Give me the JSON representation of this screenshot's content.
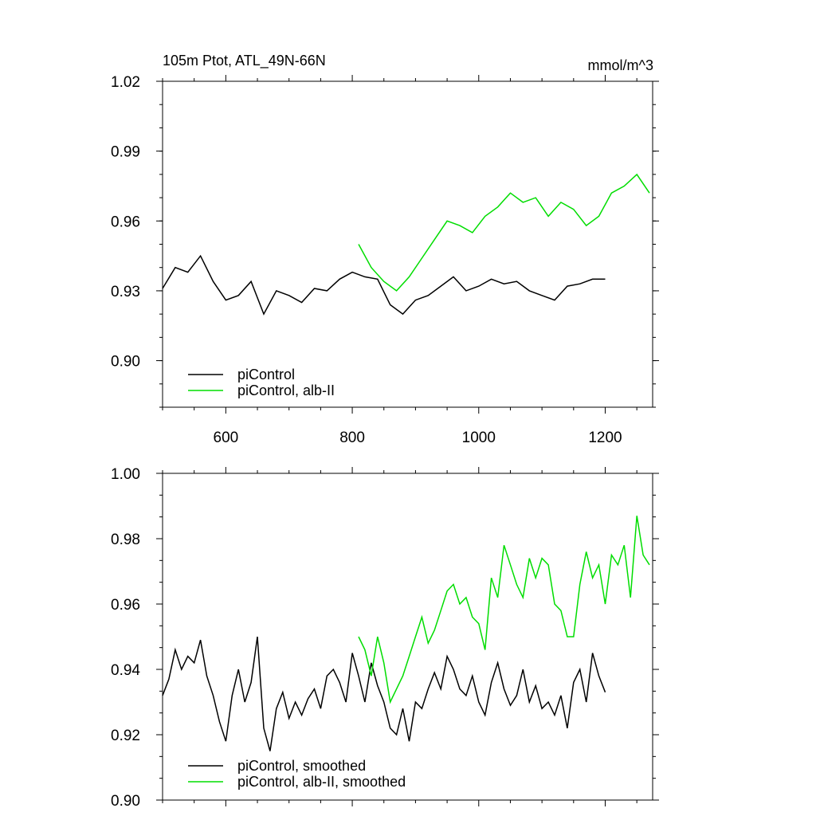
{
  "chart_data": [
    {
      "type": "line",
      "title": "105m Ptot, ATL_49N-66N",
      "units": "mmol/m^3",
      "xlim": [
        500,
        1275
      ],
      "ylim": [
        0.88,
        1.02
      ],
      "x_ticks": [
        600,
        800,
        1000,
        1200
      ],
      "x_tick_labels": [
        "600",
        "800",
        "1000",
        "1200"
      ],
      "y_ticks": [
        0.9,
        0.93,
        0.96,
        0.99,
        1.02
      ],
      "y_tick_labels": [
        "0.90",
        "0.93",
        "0.96",
        "0.99",
        "1.02"
      ],
      "legend_position": "bottom-left",
      "grid": false,
      "series": [
        {
          "name": "piControl",
          "color": "#000000",
          "x": [
            500,
            520,
            540,
            560,
            580,
            600,
            620,
            640,
            660,
            680,
            700,
            720,
            740,
            760,
            780,
            800,
            820,
            840,
            860,
            880,
            900,
            920,
            940,
            960,
            980,
            1000,
            1020,
            1040,
            1060,
            1080,
            1100,
            1120,
            1140,
            1160,
            1180,
            1200
          ],
          "values": [
            0.931,
            0.94,
            0.938,
            0.945,
            0.934,
            0.926,
            0.928,
            0.934,
            0.92,
            0.93,
            0.928,
            0.925,
            0.931,
            0.93,
            0.935,
            0.938,
            0.936,
            0.935,
            0.924,
            0.92,
            0.926,
            0.928,
            0.932,
            0.936,
            0.93,
            0.932,
            0.935,
            0.933,
            0.934,
            0.93,
            0.928,
            0.926,
            0.932,
            0.933,
            0.935,
            0.935
          ]
        },
        {
          "name": "piControl, alb-II",
          "color": "#00dd00",
          "x": [
            810,
            830,
            850,
            870,
            890,
            910,
            930,
            950,
            970,
            990,
            1010,
            1030,
            1050,
            1070,
            1090,
            1110,
            1130,
            1150,
            1170,
            1190,
            1210,
            1230,
            1250,
            1270
          ],
          "values": [
            0.95,
            0.94,
            0.934,
            0.93,
            0.936,
            0.944,
            0.952,
            0.96,
            0.958,
            0.955,
            0.962,
            0.966,
            0.972,
            0.968,
            0.97,
            0.962,
            0.968,
            0.965,
            0.958,
            0.962,
            0.972,
            0.975,
            0.98,
            0.972
          ]
        }
      ]
    },
    {
      "type": "line",
      "xlim": [
        500,
        1275
      ],
      "ylim": [
        0.9,
        1.0
      ],
      "x_ticks": [
        600,
        800,
        1000,
        1200
      ],
      "y_ticks": [
        0.9,
        0.92,
        0.94,
        0.96,
        0.98,
        1.0
      ],
      "y_tick_labels": [
        "0.90",
        "0.92",
        "0.94",
        "0.96",
        "0.98",
        "1.00"
      ],
      "legend_position": "bottom-left",
      "grid": false,
      "series": [
        {
          "name": "piControl, smoothed",
          "color": "#000000",
          "x": [
            500,
            510,
            520,
            530,
            540,
            550,
            560,
            570,
            580,
            590,
            600,
            610,
            620,
            630,
            640,
            650,
            660,
            670,
            680,
            690,
            700,
            710,
            720,
            730,
            740,
            750,
            760,
            770,
            780,
            790,
            800,
            810,
            820,
            830,
            840,
            850,
            860,
            870,
            880,
            890,
            900,
            910,
            920,
            930,
            940,
            950,
            960,
            970,
            980,
            990,
            1000,
            1010,
            1020,
            1030,
            1040,
            1050,
            1060,
            1070,
            1080,
            1090,
            1100,
            1110,
            1120,
            1130,
            1140,
            1150,
            1160,
            1170,
            1180,
            1190,
            1200
          ],
          "values": [
            0.932,
            0.937,
            0.946,
            0.94,
            0.944,
            0.942,
            0.949,
            0.938,
            0.932,
            0.924,
            0.918,
            0.932,
            0.94,
            0.93,
            0.936,
            0.95,
            0.922,
            0.915,
            0.928,
            0.933,
            0.925,
            0.93,
            0.926,
            0.931,
            0.934,
            0.928,
            0.938,
            0.94,
            0.936,
            0.93,
            0.945,
            0.938,
            0.93,
            0.942,
            0.935,
            0.93,
            0.922,
            0.92,
            0.928,
            0.918,
            0.93,
            0.928,
            0.934,
            0.939,
            0.934,
            0.944,
            0.94,
            0.934,
            0.932,
            0.938,
            0.93,
            0.926,
            0.936,
            0.942,
            0.934,
            0.929,
            0.932,
            0.94,
            0.93,
            0.935,
            0.928,
            0.93,
            0.926,
            0.932,
            0.922,
            0.936,
            0.94,
            0.93,
            0.945,
            0.938,
            0.933
          ]
        },
        {
          "name": "piControl, alb-II, smoothed",
          "color": "#00dd00",
          "x": [
            810,
            820,
            830,
            840,
            850,
            860,
            870,
            880,
            890,
            900,
            910,
            920,
            930,
            940,
            950,
            960,
            970,
            980,
            990,
            1000,
            1010,
            1020,
            1030,
            1040,
            1050,
            1060,
            1070,
            1080,
            1090,
            1100,
            1110,
            1120,
            1130,
            1140,
            1150,
            1160,
            1170,
            1180,
            1190,
            1200,
            1210,
            1220,
            1230,
            1240,
            1250,
            1260,
            1270
          ],
          "values": [
            0.95,
            0.946,
            0.938,
            0.95,
            0.942,
            0.93,
            0.934,
            0.938,
            0.944,
            0.95,
            0.956,
            0.948,
            0.952,
            0.958,
            0.964,
            0.966,
            0.96,
            0.962,
            0.956,
            0.954,
            0.946,
            0.968,
            0.962,
            0.978,
            0.972,
            0.966,
            0.962,
            0.974,
            0.968,
            0.974,
            0.972,
            0.96,
            0.958,
            0.95,
            0.95,
            0.966,
            0.976,
            0.968,
            0.972,
            0.96,
            0.975,
            0.972,
            0.978,
            0.962,
            0.987,
            0.975,
            0.972
          ]
        }
      ]
    }
  ]
}
